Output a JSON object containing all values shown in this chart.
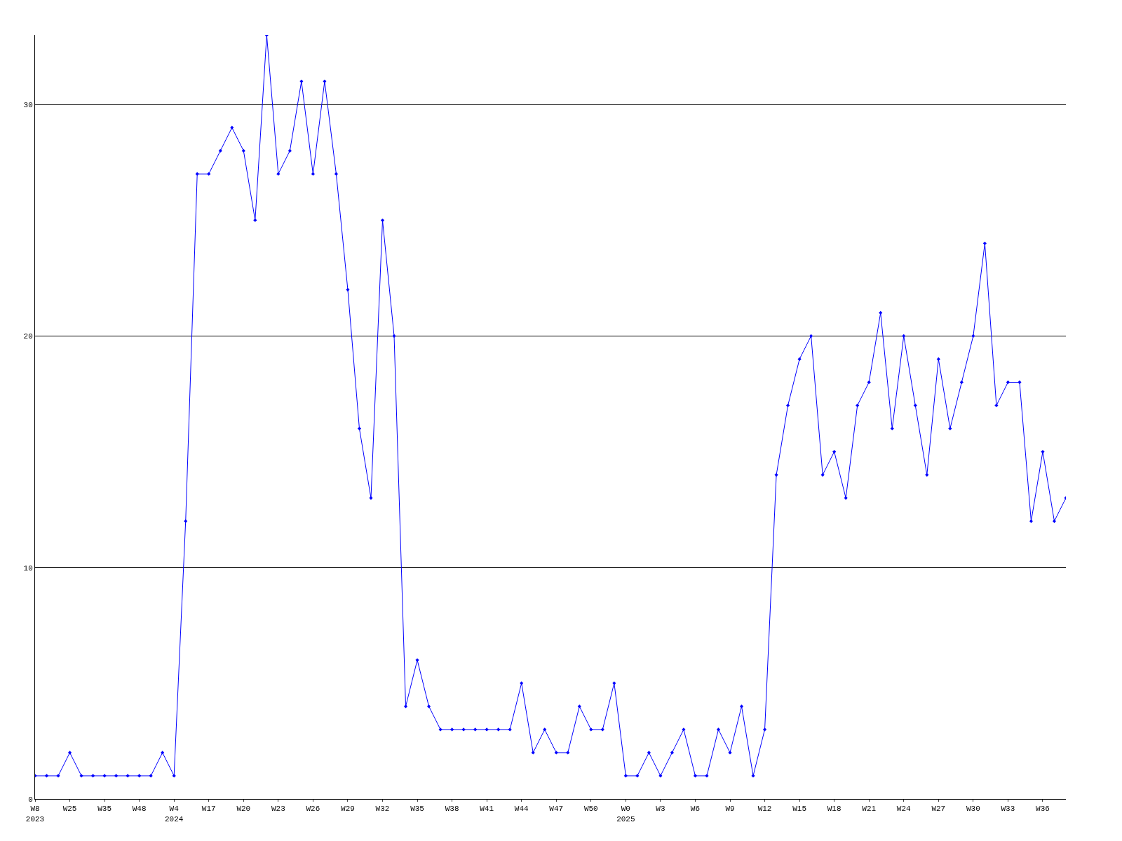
{
  "chart_data": {
    "type": "line",
    "categories": [
      "W8\n2023",
      null,
      null,
      "W25",
      null,
      null,
      "W35",
      null,
      null,
      "W48",
      null,
      null,
      "W4\n2024",
      null,
      null,
      "W17",
      null,
      null,
      "W20",
      null,
      null,
      "W23",
      null,
      null,
      "W26",
      null,
      null,
      "W29",
      null,
      null,
      "W32",
      null,
      null,
      "W35",
      null,
      null,
      "W38",
      null,
      null,
      "W41",
      null,
      null,
      "W44",
      null,
      null,
      "W47",
      null,
      null,
      "W50",
      null,
      null,
      "W0\n2025",
      null,
      null,
      "W3",
      null,
      null,
      "W6",
      null,
      null,
      "W9",
      null,
      null,
      "W12",
      null,
      null,
      "W15",
      null,
      null,
      "W18",
      null,
      null,
      "W21",
      null,
      null,
      "W24",
      null,
      null,
      "W27",
      null,
      null,
      "W30",
      null,
      null,
      "W33",
      null,
      null,
      "W36",
      null,
      null
    ],
    "series": [
      {
        "color": "#0000ff",
        "values": [
          1,
          1,
          1,
          2,
          1,
          1,
          1,
          1,
          1,
          1,
          1,
          2,
          1,
          12,
          27,
          27,
          28,
          29,
          28,
          25,
          33,
          27,
          28,
          31,
          27,
          31,
          27,
          22,
          16,
          13,
          25,
          20,
          4,
          6,
          4,
          3,
          3,
          3,
          3,
          3,
          3,
          3,
          5,
          2,
          3,
          2,
          2,
          4,
          3,
          3,
          5,
          1,
          1,
          2,
          1,
          2,
          3,
          1,
          1,
          3,
          2,
          4,
          1,
          3,
          14,
          17,
          19,
          20,
          14,
          15,
          13,
          17,
          18,
          21,
          16,
          20,
          17,
          14,
          19,
          16,
          18,
          20,
          24,
          17,
          18,
          18,
          12,
          15,
          12,
          13
        ]
      }
    ],
    "ylim": [
      0,
      33
    ],
    "yticks": [
      0,
      10,
      20,
      30
    ],
    "grid": "y",
    "legend": false,
    "marker": "diamond",
    "line_style": "solid"
  }
}
